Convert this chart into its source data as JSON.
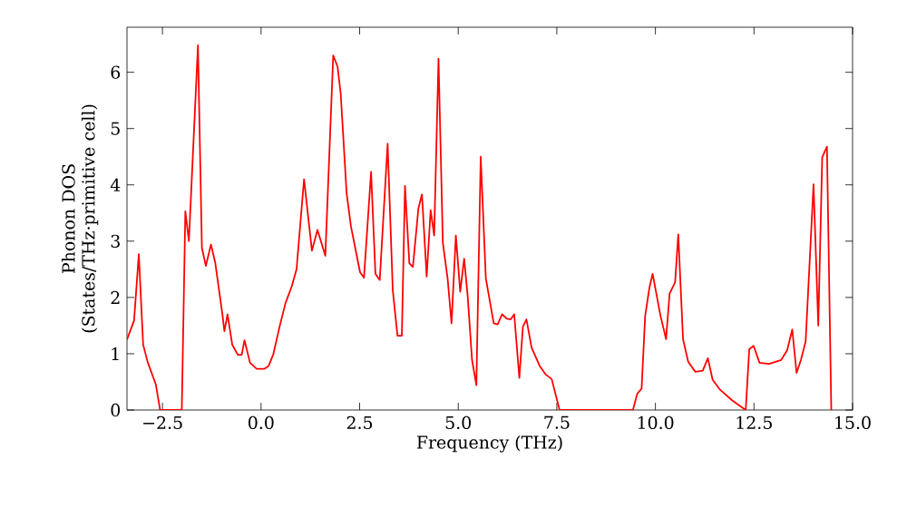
{
  "chart_data": {
    "type": "line",
    "xlabel": "Frequency (THz)",
    "ylabel": "Phonon DOS (States/THz·primitive cell)",
    "xlim": [
      -3.4,
      15
    ],
    "ylim": [
      0,
      6.8
    ],
    "xticks": [
      {
        "value": -2.5,
        "label": "−2.5"
      },
      {
        "value": 0,
        "label": "0.0"
      },
      {
        "value": 2.5,
        "label": "2.5"
      },
      {
        "value": 5,
        "label": "5.0"
      },
      {
        "value": 7.5,
        "label": "7.5"
      },
      {
        "value": 10,
        "label": "10.0"
      },
      {
        "value": 12.5,
        "label": "12.5"
      },
      {
        "value": 15,
        "label": "15.0"
      }
    ],
    "yticks": [
      0,
      1,
      2,
      3,
      4,
      5,
      6
    ],
    "grid": false,
    "marker": "none",
    "line_style": "solid",
    "series": [
      {
        "color": "#ff0000",
        "x": [
          -3.4,
          -3.22,
          -3.1,
          -2.99,
          -2.87,
          -2.67,
          -2.56,
          -2.01,
          -1.92,
          -1.83,
          -1.6,
          -1.5,
          -1.4,
          -1.27,
          -1.16,
          -0.98,
          -0.93,
          -0.85,
          -0.73,
          -0.59,
          -0.49,
          -0.42,
          -0.28,
          -0.11,
          0.08,
          0.19,
          0.31,
          0.47,
          0.62,
          0.78,
          0.9,
          1.09,
          1.29,
          1.43,
          1.63,
          1.83,
          1.94,
          2.02,
          2.17,
          2.28,
          2.51,
          2.61,
          2.79,
          2.9,
          3.01,
          3.21,
          3.34,
          3.46,
          3.57,
          3.65,
          3.76,
          3.85,
          3.99,
          4.08,
          4.2,
          4.3,
          4.39,
          4.5,
          4.61,
          4.73,
          4.83,
          4.94,
          5.05,
          5.15,
          5.24,
          5.35,
          5.46,
          5.57,
          5.7,
          5.9,
          6.0,
          6.11,
          6.24,
          6.33,
          6.42,
          6.55,
          6.64,
          6.73,
          6.86,
          7.06,
          7.22,
          7.37,
          7.57,
          9.43,
          9.54,
          9.65,
          9.74,
          9.85,
          9.93,
          10.13,
          10.27,
          10.36,
          10.5,
          10.58,
          10.7,
          10.83,
          11.01,
          11.2,
          11.33,
          11.45,
          11.64,
          11.95,
          12.29,
          12.38,
          12.49,
          12.64,
          12.88,
          13.19,
          13.34,
          13.47,
          13.58,
          13.69,
          13.81,
          14.01,
          14.13,
          14.23,
          14.35,
          14.46
        ],
        "values": [
          1.25,
          1.59,
          2.77,
          1.16,
          0.84,
          0.46,
          0,
          0,
          3.53,
          3.0,
          6.48,
          2.88,
          2.56,
          2.94,
          2.61,
          1.7,
          1.4,
          1.7,
          1.16,
          0.98,
          0.98,
          1.24,
          0.84,
          0.73,
          0.73,
          0.78,
          0.99,
          1.48,
          1.9,
          2.2,
          2.5,
          4.1,
          2.83,
          3.2,
          2.74,
          6.3,
          6.1,
          5.62,
          3.85,
          3.26,
          2.45,
          2.35,
          4.23,
          2.42,
          2.31,
          4.73,
          2.13,
          1.32,
          1.32,
          3.98,
          2.61,
          2.54,
          3.58,
          3.83,
          2.37,
          3.55,
          3.1,
          6.24,
          2.97,
          2.34,
          1.54,
          3.1,
          2.1,
          2.69,
          2.02,
          0.89,
          0.44,
          4.5,
          2.34,
          1.54,
          1.52,
          1.7,
          1.62,
          1.61,
          1.7,
          0.57,
          1.48,
          1.61,
          1.11,
          0.79,
          0.63,
          0.55,
          0,
          0,
          0.29,
          0.38,
          1.67,
          2.18,
          2.42,
          1.67,
          1.26,
          2.07,
          2.27,
          3.12,
          1.26,
          0.86,
          0.68,
          0.7,
          0.92,
          0.54,
          0.36,
          0.17,
          0,
          1.08,
          1.14,
          0.84,
          0.82,
          0.89,
          1.06,
          1.43,
          0.66,
          0.89,
          1.22,
          4.01,
          1.5,
          4.49,
          4.68,
          0
        ]
      }
    ]
  }
}
